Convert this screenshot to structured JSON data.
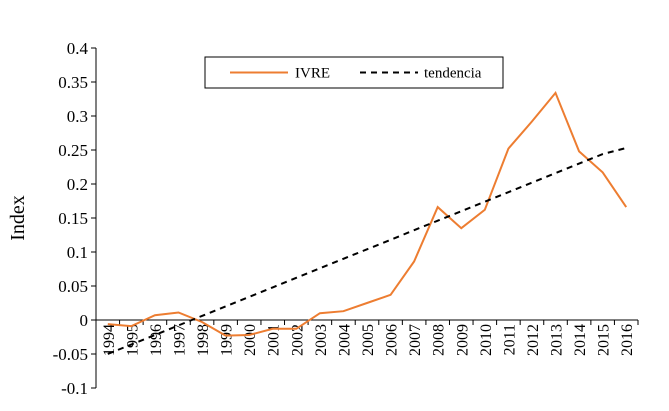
{
  "chart_data": {
    "type": "line",
    "title": "",
    "xlabel": "",
    "ylabel": "Index",
    "ylim": [
      -0.1,
      0.4
    ],
    "yticks": [
      "0.4",
      "0.35",
      "0.3",
      "0.25",
      "0.2",
      "0.15",
      "0.1",
      "0.05",
      "0",
      "-0.05",
      "-0.1"
    ],
    "yticks_values": [
      0.4,
      0.35,
      0.3,
      0.25,
      0.2,
      0.15,
      0.1,
      0.05,
      0,
      -0.05,
      -0.1
    ],
    "categories": [
      "1994",
      "1995",
      "1996",
      "1997",
      "1998",
      "1999",
      "2000",
      "2001",
      "2002",
      "2003",
      "2004",
      "2005",
      "2006",
      "2007",
      "2008",
      "2009",
      "2010",
      "2011",
      "2012",
      "2013",
      "2014",
      "2015",
      "2016"
    ],
    "legend_position": "top-center",
    "grid": false,
    "series": [
      {
        "name": "IVRE",
        "color": "#ED7D31",
        "style": "solid",
        "values": [
          -0.006,
          -0.009,
          0.007,
          0.011,
          -0.003,
          -0.023,
          -0.022,
          -0.013,
          -0.013,
          0.01,
          0.013,
          0.025,
          0.037,
          0.086,
          0.166,
          0.135,
          0.162,
          0.252,
          0.292,
          0.334,
          0.248,
          0.217,
          0.166
        ]
      },
      {
        "name": "tendencia",
        "color": "#000000",
        "style": "dashed",
        "values": [
          -0.05,
          -0.036,
          -0.022,
          -0.008,
          0.006,
          0.02,
          0.034,
          0.048,
          0.062,
          0.076,
          0.09,
          0.104,
          0.118,
          0.132,
          0.146,
          0.16,
          0.174,
          0.188,
          0.202,
          0.216,
          0.23,
          0.244,
          0.253
        ]
      }
    ]
  }
}
